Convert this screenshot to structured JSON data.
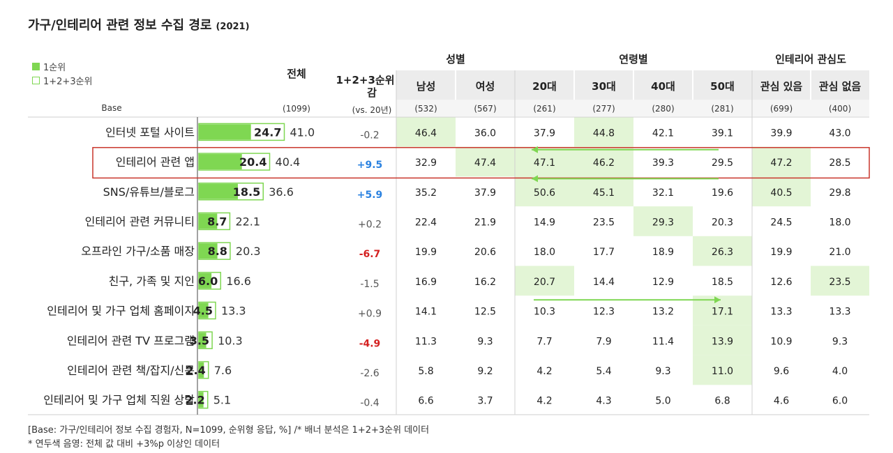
{
  "title": "가구/인테리어 관련 정보 수집 경로",
  "title_year": "(2021)",
  "legend": {
    "rank1": "1순위",
    "rank123": "1+2+3순위"
  },
  "header": {
    "base_label": "Base",
    "total": "전체",
    "change": "1+2+3순위 증감",
    "change_sub": "(vs. 20년)",
    "groups": [
      "성별",
      "연령별",
      "인테리어 관심도"
    ],
    "columns": [
      "남성",
      "여성",
      "20대",
      "30대",
      "40대",
      "50대",
      "관심 있음",
      "관심 없음"
    ],
    "bases": [
      "(1099)",
      "(532)",
      "(567)",
      "(261)",
      "(277)",
      "(280)",
      "(281)",
      "(699)",
      "(400)"
    ]
  },
  "chart_data": {
    "type": "bar",
    "title": "가구/인테리어 관련 정보 수집 경로 (2021)",
    "highlight_row": 1,
    "legend_placement": "top-left",
    "categories": [
      "인터넷 포털 사이트",
      "인테리어 관련 앱",
      "SNS/유튜브/블로그",
      "인테리어 관련 커뮤니티",
      "오프라인 가구/소품 매장",
      "친구, 가족 및 지인",
      "인테리어 및 가구 업체 홈페이지",
      "인테리어 관련 TV 프로그램",
      "인테리어 관련 책/잡지/신문",
      "인테리어 및 가구 업체 직원 상담"
    ],
    "series": [
      {
        "name": "1순위",
        "values": [
          24.7,
          20.4,
          18.5,
          8.7,
          8.8,
          6.0,
          4.5,
          3.5,
          2.4,
          2.2
        ]
      },
      {
        "name": "1+2+3순위",
        "values": [
          41.0,
          40.4,
          36.6,
          22.1,
          20.3,
          16.6,
          13.3,
          10.3,
          7.6,
          5.1
        ]
      }
    ],
    "rank1_labels": [
      "24.7",
      "20.4",
      "18.5",
      "8.7",
      "8.8",
      "6.0",
      "4.5",
      "3.5",
      "2.4",
      "2.2"
    ],
    "total_labels": [
      "41.0",
      "40.4",
      "36.6",
      "22.1",
      "20.3",
      "16.6",
      "13.3",
      "10.3",
      "7.6",
      "5.1"
    ],
    "change": [
      "-0.2",
      "+9.5",
      "+5.9",
      "+0.2",
      "-6.7",
      "-1.5",
      "+0.9",
      "-4.9",
      "-2.6",
      "-0.4"
    ],
    "change_colors": {
      "up": "#2b82e0",
      "down": "#d42020",
      "neutral": "#555555"
    },
    "breakdown": [
      [
        "46.4",
        "36.0",
        "37.9",
        "44.8",
        "42.1",
        "39.1",
        "39.9",
        "43.0"
      ],
      [
        "32.9",
        "47.4",
        "47.1",
        "46.2",
        "39.3",
        "29.5",
        "47.2",
        "28.5"
      ],
      [
        "35.2",
        "37.9",
        "50.6",
        "45.1",
        "32.1",
        "19.6",
        "40.5",
        "29.8"
      ],
      [
        "22.4",
        "21.9",
        "14.9",
        "23.5",
        "29.3",
        "20.3",
        "24.5",
        "18.0"
      ],
      [
        "19.9",
        "20.6",
        "18.0",
        "17.7",
        "18.9",
        "26.3",
        "19.9",
        "21.0"
      ],
      [
        "16.9",
        "16.2",
        "20.7",
        "14.4",
        "12.9",
        "18.5",
        "12.6",
        "23.5"
      ],
      [
        "14.1",
        "12.5",
        "10.3",
        "12.3",
        "13.2",
        "17.1",
        "13.3",
        "13.3"
      ],
      [
        "11.3",
        "9.3",
        "7.7",
        "7.9",
        "11.4",
        "13.9",
        "10.9",
        "9.3"
      ],
      [
        "5.8",
        "9.2",
        "4.2",
        "5.4",
        "9.3",
        "11.0",
        "9.6",
        "4.0"
      ],
      [
        "6.6",
        "3.7",
        "4.2",
        "4.3",
        "5.0",
        "6.8",
        "4.6",
        "6.0"
      ]
    ],
    "highlighted_cells": [
      [
        0,
        0
      ],
      [
        0,
        3
      ],
      [
        1,
        1
      ],
      [
        1,
        2
      ],
      [
        1,
        3
      ],
      [
        1,
        6
      ],
      [
        2,
        2
      ],
      [
        2,
        3
      ],
      [
        2,
        6
      ],
      [
        3,
        4
      ],
      [
        4,
        5
      ],
      [
        5,
        2
      ],
      [
        5,
        7
      ],
      [
        6,
        5
      ],
      [
        7,
        5
      ],
      [
        8,
        5
      ]
    ],
    "xlim": [
      0,
      100
    ],
    "colors": {
      "bar": "#7fd752",
      "cell_highlight": "#e3f5d6",
      "highlight_box": "#c9352b",
      "arrow": "#7fd752"
    }
  },
  "footnotes": [
    "[Base: 가구/인테리어 정보 수집 경험자, N=1099, 순위형 응답, %] /* 배너 분석은 1+2+3순위 데이터",
    "* 연두색 음영: 전체 값 대비 +3%p 이상인 데이터"
  ]
}
